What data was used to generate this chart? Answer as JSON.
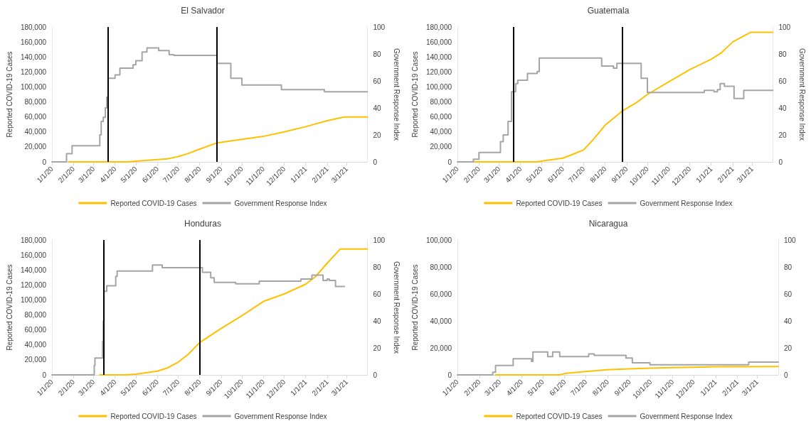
{
  "chart_data": [
    {
      "type": "line",
      "title": "El Salvador",
      "ylabel": "Reported COVID-19 Cases",
      "y2label": "Government Response Index",
      "xlim": [
        "2020-01-01",
        "2021-03-31"
      ],
      "xticks": [
        {
          "value": "2020-01-01",
          "label": "1/1/20"
        },
        {
          "value": "2020-02-01",
          "label": "2/1/20"
        },
        {
          "value": "2020-03-01",
          "label": "3/1/20"
        },
        {
          "value": "2020-04-01",
          "label": "4/1/20"
        },
        {
          "value": "2020-05-01",
          "label": "5/1/20"
        },
        {
          "value": "2020-06-01",
          "label": "6/1/20"
        },
        {
          "value": "2020-07-01",
          "label": "7/1/20"
        },
        {
          "value": "2020-08-01",
          "label": "8/1/20"
        },
        {
          "value": "2020-09-01",
          "label": "9/1/20"
        },
        {
          "value": "2020-10-01",
          "label": "10/1/20"
        },
        {
          "value": "2020-11-01",
          "label": "11/1/20"
        },
        {
          "value": "2020-12-01",
          "label": "12/1/20"
        },
        {
          "value": "2021-01-01",
          "label": "1/1/21"
        },
        {
          "value": "2021-02-01",
          "label": "2/1/21"
        },
        {
          "value": "2021-03-01",
          "label": "3/1/21"
        }
      ],
      "ylim": [
        0,
        180000
      ],
      "yticks": [
        {
          "value": 0,
          "label": "0"
        },
        {
          "value": 20000,
          "label": "20,000"
        },
        {
          "value": 40000,
          "label": "40,000"
        },
        {
          "value": 60000,
          "label": "60,000"
        },
        {
          "value": 80000,
          "label": "80,000"
        },
        {
          "value": 100000,
          "label": "100,000"
        },
        {
          "value": 120000,
          "label": "120,000"
        },
        {
          "value": 140000,
          "label": "140,000"
        },
        {
          "value": 160000,
          "label": "160,000"
        },
        {
          "value": 180000,
          "label": "180,000"
        }
      ],
      "y2lim": [
        0,
        100
      ],
      "y2ticks": [
        0,
        20,
        40,
        60,
        80,
        100
      ],
      "legend": "bottom",
      "grid": false,
      "marker": "none",
      "ref_lines": [
        {
          "axis": "x",
          "value": "2020-03-22",
          "color": "#000000"
        },
        {
          "axis": "x",
          "value": "2020-08-26",
          "color": "#000000"
        }
      ],
      "series": [
        {
          "name": "Reported COVID-19 Cases",
          "type": "line",
          "color": "#ffc000",
          "x": [
            "2020-01-25",
            "2020-04-20",
            "2020-05-01",
            "2020-06-01",
            "2020-06-15",
            "2020-07-01",
            "2020-07-15",
            "2020-08-01",
            "2020-08-25",
            "2020-09-01",
            "2020-09-15",
            "2020-10-01",
            "2020-11-01",
            "2020-12-01",
            "2021-01-01",
            "2021-02-01",
            "2021-02-26",
            "2021-03-31"
          ],
          "values": [
            0,
            0,
            1000,
            3000,
            4000,
            7000,
            11000,
            17000,
            25000,
            26000,
            28000,
            30000,
            34000,
            40000,
            47000,
            55000,
            60000,
            60000
          ]
        },
        {
          "name": "Government Response Index",
          "type": "step",
          "axis": "y2",
          "color": "#a5a5a5",
          "x": [
            "2020-01-01",
            "2020-01-22",
            "2020-01-30",
            "2020-03-10",
            "2020-03-12",
            "2020-03-15",
            "2020-03-18",
            "2020-03-20",
            "2020-03-22",
            "2020-04-01",
            "2020-04-08",
            "2020-04-27",
            "2020-05-01",
            "2020-05-10",
            "2020-05-17",
            "2020-06-03",
            "2020-06-18",
            "2020-06-25",
            "2020-08-26",
            "2020-09-15",
            "2020-10-01",
            "2020-11-27",
            "2021-01-28",
            "2021-03-31"
          ],
          "values": [
            0,
            6,
            12,
            20,
            30,
            33,
            40,
            48,
            62,
            64.5,
            69.5,
            72,
            75,
            81.5,
            84.5,
            82.5,
            79.5,
            79,
            73,
            62,
            57,
            53.5,
            52,
            52
          ]
        }
      ]
    },
    {
      "type": "line",
      "title": "Guatemala",
      "ylabel": "Reported COVID-19 Cases",
      "y2label": "Government Response Index",
      "xlim": [
        "2020-01-01",
        "2021-03-31"
      ],
      "xticks": [
        {
          "value": "2020-01-01",
          "label": "1/1/20"
        },
        {
          "value": "2020-02-01",
          "label": "2/1/20"
        },
        {
          "value": "2020-03-01",
          "label": "3/1/20"
        },
        {
          "value": "2020-04-01",
          "label": "4/1/20"
        },
        {
          "value": "2020-05-01",
          "label": "5/1/20"
        },
        {
          "value": "2020-06-01",
          "label": "6/1/20"
        },
        {
          "value": "2020-07-01",
          "label": "7/1/20"
        },
        {
          "value": "2020-08-01",
          "label": "8/1/20"
        },
        {
          "value": "2020-09-01",
          "label": "9/1/20"
        },
        {
          "value": "2020-10-01",
          "label": "10/1/20"
        },
        {
          "value": "2020-11-01",
          "label": "11/1/20"
        },
        {
          "value": "2020-12-01",
          "label": "12/1/20"
        },
        {
          "value": "2021-01-01",
          "label": "1/1/21"
        },
        {
          "value": "2021-02-01",
          "label": "2/1/21"
        },
        {
          "value": "2021-03-01",
          "label": "3/1/21"
        }
      ],
      "ylim": [
        0,
        180000
      ],
      "yticks": [
        {
          "value": 0,
          "label": "0"
        },
        {
          "value": 20000,
          "label": "20,000"
        },
        {
          "value": 40000,
          "label": "40,000"
        },
        {
          "value": 60000,
          "label": "60,000"
        },
        {
          "value": 80000,
          "label": "80,000"
        },
        {
          "value": 100000,
          "label": "100,000"
        },
        {
          "value": 120000,
          "label": "120,000"
        },
        {
          "value": 140000,
          "label": "140,000"
        },
        {
          "value": 160000,
          "label": "160,000"
        },
        {
          "value": 180000,
          "label": "180,000"
        }
      ],
      "y2lim": [
        0,
        100
      ],
      "y2ticks": [
        0,
        20,
        40,
        60,
        80,
        100
      ],
      "legend": "bottom",
      "grid": false,
      "marker": "none",
      "ref_lines": [
        {
          "axis": "x",
          "value": "2020-03-22",
          "color": "#000000"
        },
        {
          "axis": "x",
          "value": "2020-08-26",
          "color": "#000000"
        }
      ],
      "series": [
        {
          "name": "Reported COVID-19 Cases",
          "type": "line",
          "color": "#ffc000",
          "x": [
            "2020-01-24",
            "2020-04-25",
            "2020-05-01",
            "2020-06-01",
            "2020-06-15",
            "2020-07-01",
            "2020-07-15",
            "2020-08-01",
            "2020-08-26",
            "2020-09-15",
            "2020-10-01",
            "2020-11-01",
            "2020-12-01",
            "2021-01-01",
            "2021-01-15",
            "2021-02-01",
            "2021-02-27",
            "2021-03-31"
          ],
          "values": [
            0,
            0,
            1000,
            5000,
            10000,
            16000,
            30000,
            49000,
            68000,
            79000,
            90000,
            107000,
            123000,
            137000,
            145000,
            160000,
            173000,
            173000
          ]
        },
        {
          "name": "Government Response Index",
          "type": "step",
          "axis": "y2",
          "color": "#a5a5a5",
          "x": [
            "2020-01-01",
            "2020-01-24",
            "2020-02-01",
            "2020-03-03",
            "2020-03-07",
            "2020-03-14",
            "2020-03-19",
            "2020-03-25",
            "2020-03-28",
            "2020-04-11",
            "2020-04-25",
            "2020-04-28",
            "2020-07-27",
            "2020-08-13",
            "2020-08-18",
            "2020-09-22",
            "2020-10-01",
            "2020-12-22",
            "2021-01-05",
            "2021-01-10",
            "2021-01-14",
            "2021-01-20",
            "2021-02-03",
            "2021-02-17",
            "2021-03-31"
          ],
          "values": [
            0,
            2,
            7,
            15,
            20,
            30,
            52,
            58,
            60.5,
            65.5,
            67,
            77,
            71,
            69.5,
            73,
            62,
            51.5,
            53,
            52,
            53.5,
            58,
            56,
            47,
            53,
            53
          ]
        }
      ]
    },
    {
      "type": "line",
      "title": "Honduras",
      "ylabel": "Reported COVID-19 Cases",
      "y2label": "Government Response Index",
      "xlim": [
        "2020-01-01",
        "2021-03-31"
      ],
      "xticks": [
        {
          "value": "2020-01-01",
          "label": "1/1/20"
        },
        {
          "value": "2020-02-01",
          "label": "2/1/20"
        },
        {
          "value": "2020-03-01",
          "label": "3/1/20"
        },
        {
          "value": "2020-04-01",
          "label": "4/1/20"
        },
        {
          "value": "2020-05-01",
          "label": "5/1/20"
        },
        {
          "value": "2020-06-01",
          "label": "6/1/20"
        },
        {
          "value": "2020-07-01",
          "label": "7/1/20"
        },
        {
          "value": "2020-08-01",
          "label": "8/1/20"
        },
        {
          "value": "2020-09-01",
          "label": "9/1/20"
        },
        {
          "value": "2020-10-01",
          "label": "10/1/20"
        },
        {
          "value": "2020-11-01",
          "label": "11/1/20"
        },
        {
          "value": "2020-12-01",
          "label": "12/1/20"
        },
        {
          "value": "2021-01-01",
          "label": "1/1/21"
        },
        {
          "value": "2021-02-01",
          "label": "2/1/21"
        },
        {
          "value": "2021-03-01",
          "label": "3/1/21"
        }
      ],
      "ylim": [
        0,
        180000
      ],
      "yticks": [
        {
          "value": 0,
          "label": "0"
        },
        {
          "value": 20000,
          "label": "20,000"
        },
        {
          "value": 40000,
          "label": "40,000"
        },
        {
          "value": 60000,
          "label": "60,000"
        },
        {
          "value": 80000,
          "label": "80,000"
        },
        {
          "value": 100000,
          "label": "100,000"
        },
        {
          "value": 120000,
          "label": "120,000"
        },
        {
          "value": 140000,
          "label": "140,000"
        },
        {
          "value": 160000,
          "label": "160,000"
        },
        {
          "value": 180000,
          "label": "180,000"
        }
      ],
      "y2lim": [
        0,
        100
      ],
      "y2ticks": [
        0,
        20,
        40,
        60,
        80,
        100
      ],
      "legend": "bottom",
      "grid": false,
      "marker": "none",
      "ref_lines": [
        {
          "axis": "x",
          "value": "2020-03-16",
          "color": "#000000"
        },
        {
          "axis": "x",
          "value": "2020-08-01",
          "color": "#000000"
        }
      ],
      "series": [
        {
          "name": "Reported COVID-19 Cases",
          "type": "line",
          "color": "#ffc000",
          "x": [
            "2020-03-10",
            "2020-04-15",
            "2020-05-01",
            "2020-06-01",
            "2020-06-15",
            "2020-07-01",
            "2020-07-15",
            "2020-08-01",
            "2020-09-01",
            "2020-10-01",
            "2020-11-01",
            "2020-12-01",
            "2021-01-01",
            "2021-01-15",
            "2021-02-01",
            "2021-02-20",
            "2021-03-31"
          ],
          "values": [
            0,
            0,
            1000,
            5000,
            9000,
            17000,
            27000,
            43000,
            62000,
            79000,
            98000,
            108000,
            121000,
            131000,
            149000,
            168000,
            168000
          ]
        },
        {
          "name": "Government Response Index",
          "type": "step",
          "axis": "y2",
          "color": "#a5a5a5",
          "x": [
            "2020-01-01",
            "2020-03-02",
            "2020-03-03",
            "2020-03-14",
            "2020-03-15",
            "2020-03-16",
            "2020-03-20",
            "2020-04-02",
            "2020-04-04",
            "2020-05-25",
            "2020-06-08",
            "2020-08-05",
            "2020-08-17",
            "2020-08-22",
            "2020-09-22",
            "2020-10-26",
            "2020-12-25",
            "2021-01-10",
            "2021-01-26",
            "2021-02-01",
            "2021-02-04",
            "2021-02-13",
            "2021-02-26"
          ],
          "values": [
            0,
            7,
            12.5,
            25,
            40,
            62,
            66,
            73,
            77,
            81.5,
            79.5,
            76,
            72,
            68.5,
            67.5,
            69.5,
            71,
            74,
            70,
            71,
            70,
            65.5,
            65.5
          ]
        }
      ]
    },
    {
      "type": "line",
      "title": "Nicaragua",
      "ylabel": "Reported COVID-19 Cases",
      "xlim": [
        "2020-01-01",
        "2021-03-31"
      ],
      "xticks": [
        {
          "value": "2020-01-01",
          "label": "1/1/20"
        },
        {
          "value": "2020-02-01",
          "label": "2/1/20"
        },
        {
          "value": "2020-03-01",
          "label": "3/1/20"
        },
        {
          "value": "2020-04-01",
          "label": "4/1/20"
        },
        {
          "value": "2020-05-01",
          "label": "5/1/20"
        },
        {
          "value": "2020-06-01",
          "label": "6/1/20"
        },
        {
          "value": "2020-07-01",
          "label": "7/1/20"
        },
        {
          "value": "2020-08-01",
          "label": "8/1/20"
        },
        {
          "value": "2020-09-01",
          "label": "9/1/20"
        },
        {
          "value": "2020-10-01",
          "label": "10/1/20"
        },
        {
          "value": "2020-11-01",
          "label": "11/1/20"
        },
        {
          "value": "2020-12-01",
          "label": "12/1/20"
        },
        {
          "value": "2021-01-01",
          "label": "1/1/21"
        },
        {
          "value": "2021-02-01",
          "label": "2/1/21"
        },
        {
          "value": "2021-03-01",
          "label": "3/1/21"
        }
      ],
      "ylim": [
        0,
        100000
      ],
      "yticks": [
        {
          "value": 0,
          "label": "0"
        },
        {
          "value": 20000,
          "label": "20,000"
        },
        {
          "value": 40000,
          "label": "40,000"
        },
        {
          "value": 60000,
          "label": "60,000"
        },
        {
          "value": 80000,
          "label": "80,000"
        },
        {
          "value": 100000,
          "label": "100,000"
        }
      ],
      "y2lim": [
        0,
        100
      ],
      "y2ticks": [
        0,
        20,
        40,
        60,
        80,
        100
      ],
      "legend": "bottom",
      "grid": false,
      "marker": "none",
      "series": [
        {
          "name": "Reported COVID-19 Cases",
          "type": "line",
          "color": "#ffc000",
          "x": [
            "2020-02-24",
            "2020-05-25",
            "2020-06-01",
            "2020-07-01",
            "2020-08-01",
            "2020-09-01",
            "2020-10-01",
            "2020-11-01",
            "2020-12-01",
            "2021-01-01",
            "2021-03-31"
          ],
          "values": [
            0,
            0,
            1000,
            2500,
            3800,
            4500,
            5000,
            5400,
            5700,
            6100,
            6200
          ]
        },
        {
          "name": "Government Response Index",
          "type": "step",
          "axis": "y2",
          "color": "#a5a5a5",
          "x": [
            "2020-01-01",
            "2020-02-20",
            "2020-02-24",
            "2020-03-20",
            "2020-04-15",
            "2020-04-17",
            "2020-05-08",
            "2020-05-15",
            "2020-05-25",
            "2020-07-05",
            "2020-07-13",
            "2020-08-27",
            "2020-09-05",
            "2020-09-30",
            "2021-02-17",
            "2021-03-31"
          ],
          "values": [
            0,
            2,
            7,
            12,
            10,
            17,
            13.5,
            17,
            13.5,
            15.5,
            14.5,
            12.5,
            9,
            7.5,
            9.5,
            9.5
          ]
        }
      ]
    }
  ]
}
